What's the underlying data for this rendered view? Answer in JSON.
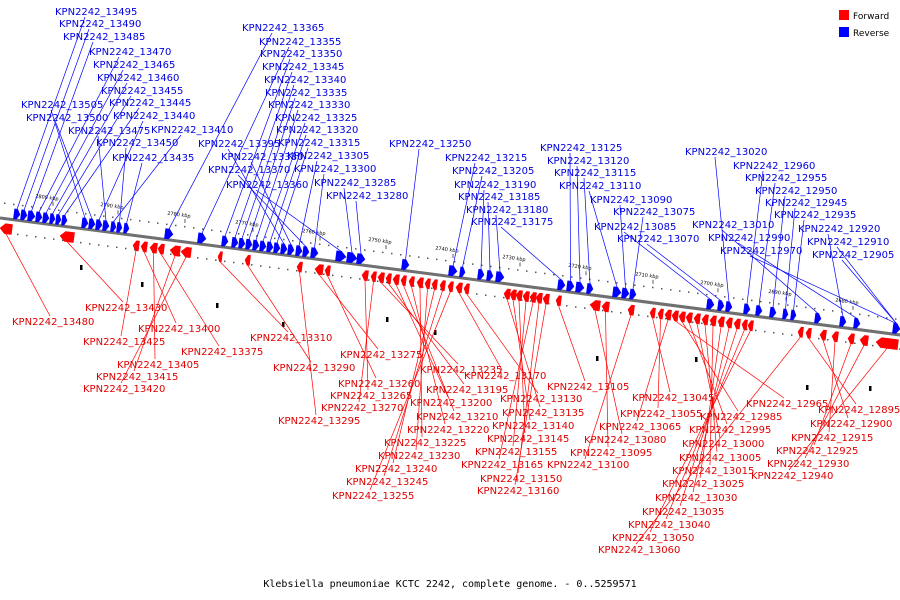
{
  "caption": "Klebsiella pneumoniae KCTC 2242, complete genome. - 0..5259571",
  "legend": [
    {
      "label": "Forward",
      "color": "#ff0000"
    },
    {
      "label": "Reverse",
      "color": "#0000ff"
    }
  ],
  "colors": {
    "forward": "#ff0000",
    "reverse": "#0000ff",
    "forward_text": "#e00000",
    "reverse_text": "#0000e0",
    "axis": "#808080"
  },
  "ticks": [
    "2800 kbp",
    "2790 kbp",
    "2780 kbp",
    "2770 kbp",
    "2760 kbp",
    "2750 kbp",
    "2740 kbp",
    "2730 kbp",
    "2720 kbp",
    "2710 kbp",
    "2700 kbp",
    "2690 kbp",
    "2680 kbp"
  ],
  "reverse_labels": [
    "KPN2242_13495",
    "KPN2242_13490",
    "KPN2242_13485",
    "KPN2242_13470",
    "KPN2242_13465",
    "KPN2242_13460",
    "KPN2242_13455",
    "KPN2242_13445",
    "KPN2242_13505",
    "KPN2242_13500",
    "KPN2242_13440",
    "KPN2242_13475",
    "KPN2242_13410",
    "KPN2242_13450",
    "KPN2242_13435",
    "KPN2242_13365",
    "KPN2242_13355",
    "KPN2242_13350",
    "KPN2242_13345",
    "KPN2242_13340",
    "KPN2242_13335",
    "KPN2242_13330",
    "KPN2242_13325",
    "KPN2242_13320",
    "KPN2242_13315",
    "KPN2242_13395",
    "KPN2242_13380",
    "KPN2242_13305",
    "KPN2242_13370",
    "KPN2242_13300",
    "KPN2242_13360",
    "KPN2242_13285",
    "KPN2242_13280",
    "KPN2242_13250",
    "KPN2242_13215",
    "KPN2242_13205",
    "KPN2242_13190",
    "KPN2242_13185",
    "KPN2242_13180",
    "KPN2242_13175",
    "KPN2242_13125",
    "KPN2242_13120",
    "KPN2242_13115",
    "KPN2242_13110",
    "KPN2242_13090",
    "KPN2242_13075",
    "KPN2242_13085",
    "KPN2242_13070",
    "KPN2242_13020",
    "KPN2242_12960",
    "KPN2242_12955",
    "KPN2242_12950",
    "KPN2242_12945",
    "KPN2242_12935",
    "KPN2242_13010",
    "KPN2242_12920",
    "KPN2242_12990",
    "KPN2242_12910",
    "KPN2242_12970",
    "KPN2242_12905"
  ],
  "forward_labels": [
    "KPN2242_13480",
    "KPN2242_13430",
    "KPN2242_13425",
    "KPN2242_13400",
    "KPN2242_13405",
    "KPN2242_13375",
    "KPN2242_13415",
    "KPN2242_13420",
    "KPN2242_13310",
    "KPN2242_13290",
    "KPN2242_13295",
    "KPN2242_13275",
    "KPN2242_13260",
    "KPN2242_13265",
    "KPN2242_13270",
    "KPN2242_13235",
    "KPN2242_13195",
    "KPN2242_13200",
    "KPN2242_13210",
    "KPN2242_13220",
    "KPN2242_13225",
    "KPN2242_13230",
    "KPN2242_13240",
    "KPN2242_13245",
    "KPN2242_13255",
    "KPN2242_13170",
    "KPN2242_13130",
    "KPN2242_13135",
    "KPN2242_13140",
    "KPN2242_13145",
    "KPN2242_13155",
    "KPN2242_13165",
    "KPN2242_13150",
    "KPN2242_13160",
    "KPN2242_13105",
    "KPN2242_13080",
    "KPN2242_13095",
    "KPN2242_13100",
    "KPN2242_13045",
    "KPN2242_13055",
    "KPN2242_13065",
    "KPN2242_12965",
    "KPN2242_12985",
    "KPN2242_12995",
    "KPN2242_13000",
    "KPN2242_13005",
    "KPN2242_13015",
    "KPN2242_13025",
    "KPN2242_13030",
    "KPN2242_13035",
    "KPN2242_13040",
    "KPN2242_13050",
    "KPN2242_13060",
    "KPN2242_12895",
    "KPN2242_12900",
    "KPN2242_12915",
    "KPN2242_12925",
    "KPN2242_12930",
    "KPN2242_12940"
  ]
}
